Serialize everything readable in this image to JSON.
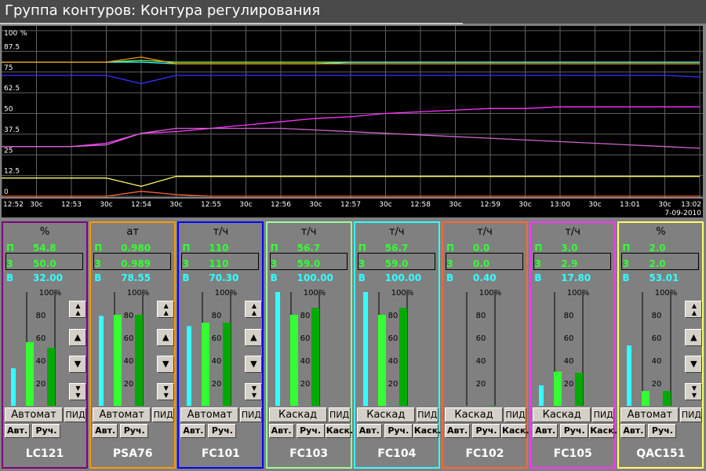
{
  "window": {
    "title": "Группа контуров: Контура регулирования"
  },
  "trend": {
    "y_ticks": [
      "100",
      "87.5",
      "75",
      "62.5",
      "50",
      "37.5",
      "25",
      "12.5",
      "0"
    ],
    "y_unit": "%",
    "x_ticks": [
      "12:52",
      "30с",
      "12:53",
      "30с",
      "12:54",
      "30с",
      "12:55",
      "30с",
      "12:56",
      "30с",
      "12:57",
      "30с",
      "12:58",
      "30с",
      "12:59",
      "30с",
      "13:00",
      "30с",
      "13:01",
      "30с",
      "13:02"
    ],
    "date": "7-09-2010"
  },
  "chart_data": {
    "type": "line",
    "xlabel": "",
    "ylabel": "",
    "ylim": [
      0,
      100
    ],
    "x": [
      "12:52",
      "12:52:30",
      "12:53",
      "12:53:30",
      "12:54",
      "12:54:30",
      "12:55",
      "12:55:30",
      "12:56",
      "12:56:30",
      "12:57",
      "12:57:30",
      "12:58",
      "12:58:30",
      "12:59",
      "12:59:30",
      "13:00",
      "13:00:30",
      "13:01",
      "13:01:30",
      "13:02"
    ],
    "series": [
      {
        "color": "#66ff66",
        "values": [
          81,
          81,
          81,
          81,
          82,
          81,
          81,
          81,
          81,
          81,
          81,
          81,
          81,
          81,
          81,
          81,
          81,
          81,
          81,
          81,
          81
        ]
      },
      {
        "color": "#33ffff",
        "values": [
          81,
          81,
          81,
          81,
          81,
          80,
          80,
          80,
          80,
          80,
          81,
          81,
          81,
          81,
          81,
          81,
          81,
          81,
          81,
          81,
          81
        ]
      },
      {
        "color": "#ff9900",
        "values": [
          81,
          81,
          81,
          81,
          84,
          80,
          80,
          80,
          80,
          80,
          80,
          80,
          80,
          80,
          80,
          80,
          80,
          80,
          80,
          80,
          80
        ]
      },
      {
        "color": "#3333ff",
        "values": [
          73,
          73,
          73,
          73,
          68,
          73,
          73,
          73,
          73,
          73,
          73,
          73,
          73,
          73,
          73,
          73,
          73,
          73,
          73,
          73,
          72
        ]
      },
      {
        "color": "#ff33ff",
        "values": [
          30,
          30,
          30,
          32,
          38,
          39,
          41,
          43,
          45,
          47,
          48,
          50,
          51,
          52,
          53,
          53,
          54,
          54,
          54,
          54,
          54
        ]
      },
      {
        "color": "#cc66cc",
        "values": [
          30,
          30,
          30,
          31,
          38,
          41,
          41,
          41,
          41,
          40,
          39,
          38,
          37,
          36,
          35,
          34,
          33,
          32,
          31,
          30,
          29
        ]
      },
      {
        "color": "#ffff66",
        "values": [
          11,
          11,
          11,
          11,
          6,
          12,
          12,
          12,
          12,
          12,
          12,
          12,
          12,
          12,
          12,
          12,
          12,
          12,
          12,
          12,
          12
        ]
      },
      {
        "color": "#ff6633",
        "values": [
          0,
          0,
          0,
          0,
          3,
          1,
          0,
          0,
          0,
          0,
          0,
          0,
          0,
          0,
          0,
          0,
          0,
          0,
          0,
          0,
          0
        ]
      }
    ]
  },
  "labels": {
    "p": "П",
    "z": "З",
    "v": "В",
    "scale_top": "100%",
    "s80": "80",
    "s60": "60",
    "s40": "40",
    "s20": "20",
    "pid": "ПИД",
    "auto_btn": "Авт.",
    "manual_btn": "Руч.",
    "cascade_btn": "Каск."
  },
  "loops": [
    {
      "tag": "LC121",
      "unit": "%",
      "pv": "54.8",
      "sp": "50.0",
      "out": "32.00",
      "mode": "Автомат",
      "color": "#800080",
      "bars": [
        0.33,
        0.56,
        0.51
      ],
      "arrows": 4,
      "cascade": false
    },
    {
      "tag": "PSA76",
      "unit": "ат",
      "pv": "0.980",
      "sp": "0.989",
      "out": "78.55",
      "mode": "Автомат",
      "color": "#ff9900",
      "bars": [
        0.79,
        0.8,
        0.8
      ],
      "arrows": 4,
      "cascade": false
    },
    {
      "tag": "FC101",
      "unit": "т/ч",
      "pv": "110",
      "sp": "110",
      "out": "70.30",
      "mode": "Автомат",
      "color": "#0000ff",
      "bars": [
        0.7,
        0.73,
        0.73
      ],
      "arrows": 4,
      "cascade": false
    },
    {
      "tag": "FC103",
      "unit": "т/ч",
      "pv": "56.7",
      "sp": "59.0",
      "out": "100.00",
      "mode": "Каскад",
      "color": "#99ff99",
      "bars": [
        1.0,
        0.8,
        0.86
      ],
      "arrows": 0,
      "cascade": true
    },
    {
      "tag": "FC104",
      "unit": "т/ч",
      "pv": "56.7",
      "sp": "59.0",
      "out": "100.00",
      "mode": "Каскад",
      "color": "#33ffff",
      "bars": [
        1.0,
        0.8,
        0.86
      ],
      "arrows": 0,
      "cascade": true
    },
    {
      "tag": "FC102",
      "unit": "т/ч",
      "pv": "0.0",
      "sp": "0.0",
      "out": "0.40",
      "mode": "Каскад",
      "color": "#ff6633",
      "bars": [
        0.0,
        0.0,
        0.004
      ],
      "arrows": 0,
      "cascade": true
    },
    {
      "tag": "FC105",
      "unit": "т/ч",
      "pv": "3.0",
      "sp": "2.9",
      "out": "17.80",
      "mode": "Каскад",
      "color": "#ff33ff",
      "bars": [
        0.18,
        0.3,
        0.29
      ],
      "arrows": 0,
      "cascade": true
    },
    {
      "tag": "QAC151",
      "unit": "%",
      "pv": "2.0",
      "sp": "2.0",
      "out": "53.01",
      "mode": "Автомат",
      "color": "#ffff66",
      "bars": [
        0.53,
        0.13,
        0.13
      ],
      "arrows": 4,
      "cascade": false
    }
  ]
}
